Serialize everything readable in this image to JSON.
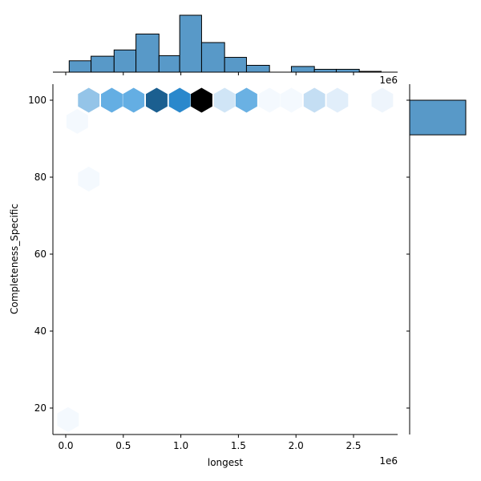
{
  "chart_data": {
    "type": "hexbin",
    "title": "",
    "xlabel": "longest",
    "ylabel": "Completeness_Specific",
    "x_offset_label": "1e6",
    "top_marginal_offset_label": "1e6",
    "xlim": [
      -0.09,
      2.89
    ],
    "ylim": [
      13,
      104
    ],
    "x_ticks": [
      0.0,
      0.5,
      1.0,
      1.5,
      2.0,
      2.5
    ],
    "x_tick_labels": [
      "0.0",
      "0.5",
      "1.0",
      "1.5",
      "2.0",
      "2.5"
    ],
    "y_ticks": [
      20,
      40,
      60,
      80,
      100
    ],
    "y_tick_labels": [
      "20",
      "40",
      "60",
      "80",
      "100"
    ],
    "grid": false,
    "cmap": "Blues",
    "hexbins": [
      {
        "x": 0.2,
        "y": 100,
        "color": "#94c4e8"
      },
      {
        "x": 0.4,
        "y": 100,
        "color": "#64aee3"
      },
      {
        "x": 0.59,
        "y": 100,
        "color": "#64aee3"
      },
      {
        "x": 0.79,
        "y": 100,
        "color": "#1b5f90"
      },
      {
        "x": 0.99,
        "y": 100,
        "color": "#2a88cc"
      },
      {
        "x": 1.18,
        "y": 100,
        "color": "#000000"
      },
      {
        "x": 1.38,
        "y": 100,
        "color": "#d0e5f6"
      },
      {
        "x": 1.57,
        "y": 100,
        "color": "#6ab1e3"
      },
      {
        "x": 1.77,
        "y": 100,
        "color": "#f4f9fe"
      },
      {
        "x": 1.96,
        "y": 100,
        "color": "#f4f9fe"
      },
      {
        "x": 2.16,
        "y": 100,
        "color": "#c4def3"
      },
      {
        "x": 2.36,
        "y": 100,
        "color": "#e1eefa"
      },
      {
        "x": 2.75,
        "y": 100,
        "color": "#eef5fc"
      },
      {
        "x": 0.1,
        "y": 94.5,
        "color": "#f4f9fe"
      },
      {
        "x": 0.2,
        "y": 79.5,
        "color": "#f4f9fe"
      },
      {
        "x": 0.02,
        "y": 17,
        "color": "#f4f9fe"
      }
    ],
    "marginal_x": {
      "type": "histogram",
      "bin_edges": [
        0.03,
        0.22,
        0.42,
        0.61,
        0.81,
        0.99,
        1.18,
        1.38,
        1.57,
        1.77,
        1.96,
        2.16,
        2.35,
        2.55,
        2.74
      ],
      "relative_heights": [
        0.2,
        0.28,
        0.39,
        0.67,
        0.29,
        1.0,
        0.52,
        0.26,
        0.12,
        0.0,
        0.1,
        0.05,
        0.05,
        0.01
      ],
      "color": "#5899c8"
    },
    "marginal_y": {
      "type": "histogram",
      "bins": [
        {
          "y_from": 91,
          "y_to": 100,
          "relative_width": 1.0
        }
      ],
      "color": "#5899c8"
    }
  }
}
